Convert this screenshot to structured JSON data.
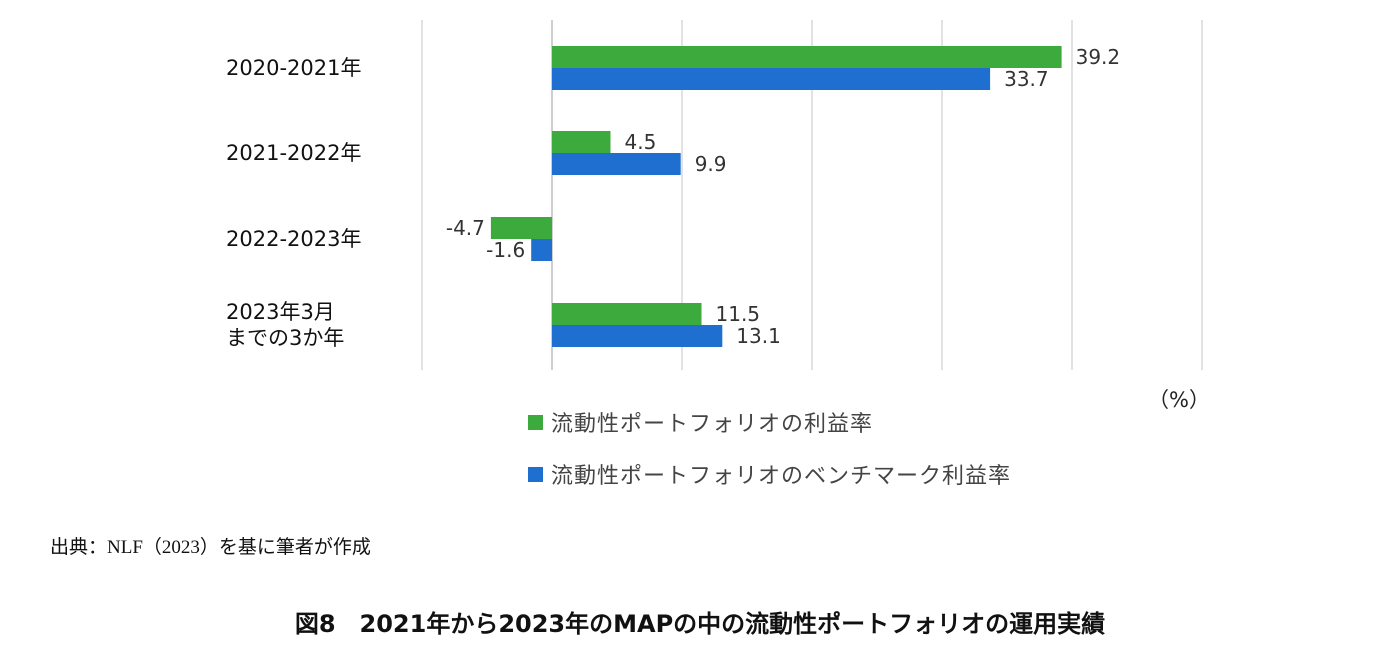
{
  "chart_data": {
    "type": "bar",
    "orientation": "horizontal",
    "categories": [
      "2020-2021年",
      "2021-2022年",
      "2022-2023年",
      "2023年3月\nまでの3か年"
    ],
    "series": [
      {
        "name": "流動性ポートフォリオの利益率",
        "color": "#3daa3d",
        "values": [
          39.2,
          4.5,
          -4.7,
          11.5
        ],
        "labels": [
          "39.2",
          "4.5",
          "-4.7",
          "11.5"
        ]
      },
      {
        "name": "流動性ポートフォリオのベンチマーク利益率",
        "color": "#1f6fd1",
        "values": [
          33.7,
          9.9,
          -1.6,
          13.1
        ],
        "labels": [
          "33.7",
          "9.9",
          "-1.6",
          "13.1"
        ]
      }
    ],
    "xlim": [
      -10,
      50
    ],
    "grid": true,
    "unit": "（%）",
    "legend_position": "bottom"
  },
  "source_note": "出典：NLF（2023）を基に筆者が作成",
  "figure_caption": "図8　2021年から2023年のMAPの中の流動性ポートフォリオの運用実績"
}
